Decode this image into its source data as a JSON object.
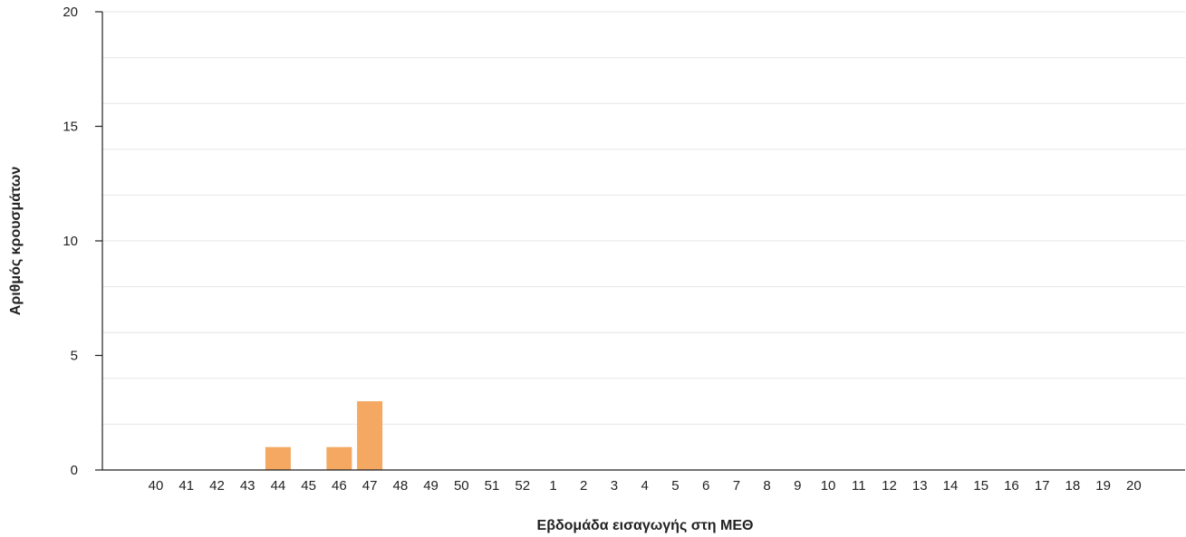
{
  "chart_data": {
    "type": "bar",
    "xlabel": "Εβδομάδα εισαγωγής στη ΜΕΘ",
    "ylabel": "Αριθμός κρουσμάτων",
    "categories": [
      "40",
      "41",
      "42",
      "43",
      "44",
      "45",
      "46",
      "47",
      "48",
      "49",
      "50",
      "51",
      "52",
      "1",
      "2",
      "3",
      "4",
      "5",
      "6",
      "7",
      "8",
      "9",
      "10",
      "11",
      "12",
      "13",
      "14",
      "15",
      "16",
      "17",
      "18",
      "19",
      "20"
    ],
    "values": [
      0,
      0,
      0,
      0,
      1,
      0,
      1,
      3,
      0,
      0,
      0,
      0,
      0,
      0,
      0,
      0,
      0,
      0,
      0,
      0,
      0,
      0,
      0,
      0,
      0,
      0,
      0,
      0,
      0,
      0,
      0,
      0,
      0
    ],
    "ylim": [
      0,
      20
    ],
    "yticks": [
      0,
      5,
      10,
      15,
      20
    ],
    "grid": true,
    "colors": {
      "bar": "#f4a862",
      "grid": "#e6e6e6",
      "axis": "#222222"
    }
  }
}
